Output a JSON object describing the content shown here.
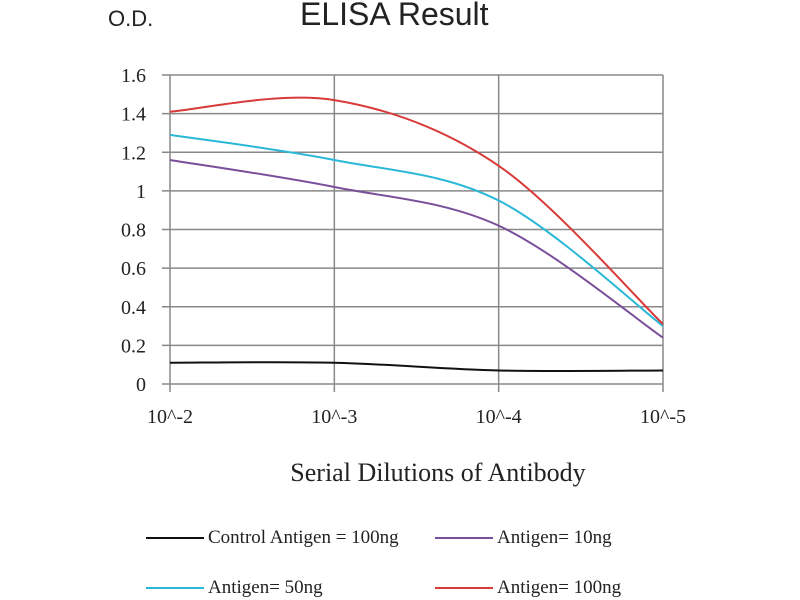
{
  "chart_data": {
    "type": "line",
    "title": "ELISA Result",
    "ylabel": "O.D.",
    "xlabel": "Serial Dilutions of Antibody",
    "categories": [
      "10^-2",
      "10^-3",
      "10^-4",
      "10^-5"
    ],
    "ylim": [
      0,
      1.6
    ],
    "yticks": [
      "0",
      "0.2",
      "0.4",
      "0.6",
      "0.8",
      "1",
      "1.2",
      "1.4",
      "1.6"
    ],
    "grid": true,
    "legend": "bottom",
    "series": [
      {
        "name": "Control Antigen = 100ng",
        "color": "#111111",
        "values": [
          0.11,
          0.11,
          0.07,
          0.07
        ]
      },
      {
        "name": "Antigen= 10ng",
        "color": "#7a4f9a",
        "values": [
          1.16,
          1.02,
          0.82,
          0.24
        ]
      },
      {
        "name": "Antigen= 50ng",
        "color": "#2ab8d8",
        "values": [
          1.29,
          1.16,
          0.95,
          0.3
        ]
      },
      {
        "name": "Antigen= 100ng",
        "color": "#d83a3a",
        "values": [
          1.41,
          1.47,
          1.13,
          0.31
        ]
      }
    ]
  }
}
